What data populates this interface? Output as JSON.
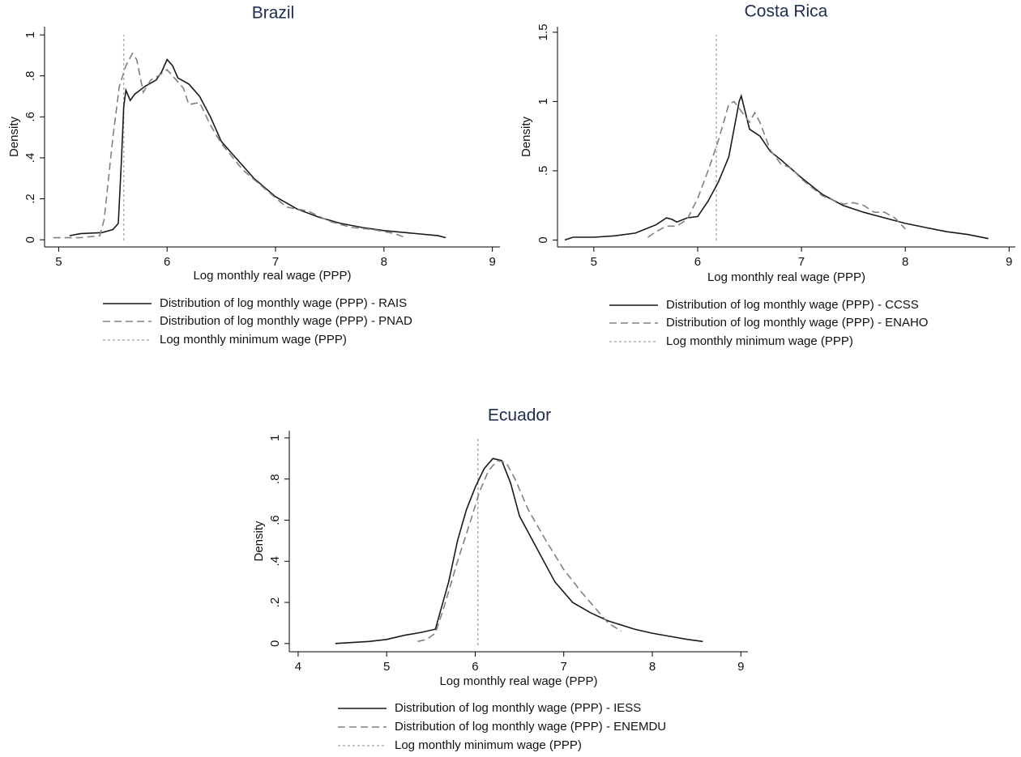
{
  "chart_data": [
    {
      "type": "line",
      "title": "Brazil",
      "x_label": "Log monthly real wage (PPP)",
      "y_label": "Density",
      "xlim": [
        4.87,
        9.07
      ],
      "xticks": [
        5,
        6,
        7,
        8,
        9
      ],
      "ylim": [
        -0.035,
        1.04
      ],
      "yticks": [
        0,
        {
          "value": 0.2,
          "label": ".2"
        },
        {
          "value": 0.4,
          "label": ".4"
        },
        {
          "value": 0.6,
          "label": ".6"
        },
        {
          "value": 0.8,
          "label": ".8"
        },
        1
      ],
      "series": [
        {
          "name": "Distribution of log monthly wage (PPP) - RAIS",
          "color": "#1a1a1a",
          "dash": "solid",
          "x": [
            5.1,
            5.2,
            5.4,
            5.5,
            5.55,
            5.58,
            5.6,
            5.62,
            5.66,
            5.7,
            5.8,
            5.9,
            5.95,
            6.0,
            6.05,
            6.1,
            6.2,
            6.3,
            6.4,
            6.5,
            6.6,
            6.8,
            7.0,
            7.2,
            7.4,
            7.6,
            7.8,
            8.0,
            8.2,
            8.4,
            8.5,
            8.57
          ],
          "values": [
            0.02,
            0.03,
            0.035,
            0.05,
            0.08,
            0.4,
            0.65,
            0.73,
            0.68,
            0.71,
            0.75,
            0.78,
            0.82,
            0.88,
            0.85,
            0.79,
            0.76,
            0.7,
            0.6,
            0.48,
            0.42,
            0.3,
            0.21,
            0.15,
            0.11,
            0.08,
            0.06,
            0.045,
            0.035,
            0.025,
            0.02,
            0.01
          ]
        },
        {
          "name": "Distribution of log monthly wage (PPP) - PNAD",
          "color": "#808080",
          "dash": "dashed",
          "x": [
            4.95,
            5.2,
            5.38,
            5.42,
            5.5,
            5.56,
            5.62,
            5.68,
            5.72,
            5.78,
            5.85,
            5.92,
            6.0,
            6.05,
            6.15,
            6.2,
            6.3,
            6.4,
            6.5,
            6.7,
            6.9,
            7.1,
            7.3,
            7.5,
            7.7,
            7.9,
            8.1,
            8.2
          ],
          "values": [
            0.01,
            0.01,
            0.02,
            0.1,
            0.5,
            0.75,
            0.85,
            0.91,
            0.88,
            0.72,
            0.78,
            0.8,
            0.83,
            0.8,
            0.74,
            0.66,
            0.67,
            0.56,
            0.47,
            0.34,
            0.25,
            0.16,
            0.14,
            0.09,
            0.06,
            0.05,
            0.03,
            0.01
          ]
        }
      ],
      "min_wage": {
        "name": "Log monthly minimum wage (PPP)",
        "x": 5.6,
        "color": "#b0b0b0"
      }
    },
    {
      "type": "line",
      "title": "Costa Rica",
      "x_label": "Log monthly real wage (PPP)",
      "y_label": "Density",
      "xlim": [
        4.65,
        9.06
      ],
      "xticks": [
        5,
        6,
        7,
        8,
        9
      ],
      "ylim": [
        -0.05,
        1.54
      ],
      "yticks": [
        0,
        {
          "value": 0.5,
          "label": ".5"
        },
        1,
        1.5
      ],
      "series": [
        {
          "name": "Distribution of log monthly wage (PPP) - CCSS",
          "color": "#1a1a1a",
          "dash": "solid",
          "x": [
            4.72,
            4.8,
            5.0,
            5.2,
            5.4,
            5.5,
            5.6,
            5.7,
            5.75,
            5.8,
            5.9,
            6.0,
            6.1,
            6.2,
            6.3,
            6.35,
            6.4,
            6.42,
            6.45,
            6.5,
            6.6,
            6.7,
            6.8,
            7.0,
            7.2,
            7.4,
            7.6,
            7.8,
            8.0,
            8.2,
            8.4,
            8.6,
            8.8
          ],
          "values": [
            0.0,
            0.02,
            0.02,
            0.03,
            0.05,
            0.08,
            0.11,
            0.16,
            0.15,
            0.13,
            0.16,
            0.17,
            0.28,
            0.42,
            0.6,
            0.8,
            1.0,
            1.04,
            0.95,
            0.8,
            0.75,
            0.64,
            0.58,
            0.45,
            0.33,
            0.25,
            0.2,
            0.16,
            0.12,
            0.09,
            0.06,
            0.04,
            0.01
          ]
        },
        {
          "name": "Distribution of log monthly wage (PPP) - ENAHO",
          "color": "#808080",
          "dash": "dashed",
          "x": [
            5.52,
            5.6,
            5.7,
            5.8,
            5.9,
            6.0,
            6.1,
            6.2,
            6.3,
            6.35,
            6.4,
            6.5,
            6.55,
            6.6,
            6.7,
            6.8,
            6.9,
            7.0,
            7.2,
            7.4,
            7.5,
            7.6,
            7.7,
            7.8,
            7.9,
            8.0
          ],
          "values": [
            0.02,
            0.06,
            0.1,
            0.1,
            0.15,
            0.3,
            0.5,
            0.72,
            0.98,
            1.0,
            0.95,
            0.85,
            0.92,
            0.85,
            0.65,
            0.55,
            0.52,
            0.44,
            0.32,
            0.26,
            0.27,
            0.25,
            0.2,
            0.2,
            0.16,
            0.08
          ]
        }
      ],
      "min_wage": {
        "name": "Log monthly minimum wage (PPP)",
        "x": 6.18,
        "color": "#b0b0b0"
      }
    },
    {
      "type": "line",
      "title": "Ecuador",
      "x_label": "Log monthly real wage (PPP)",
      "y_label": "Density",
      "xlim": [
        3.9,
        9.08
      ],
      "xticks": [
        4,
        5,
        6,
        7,
        8,
        9
      ],
      "ylim": [
        -0.04,
        1.035
      ],
      "yticks": [
        0,
        {
          "value": 0.2,
          "label": ".2"
        },
        {
          "value": 0.4,
          "label": ".4"
        },
        {
          "value": 0.6,
          "label": ".6"
        },
        {
          "value": 0.8,
          "label": ".8"
        },
        1
      ],
      "series": [
        {
          "name": "Distribution of log monthly wage (PPP) - IESS",
          "color": "#1a1a1a",
          "dash": "solid",
          "x": [
            4.42,
            4.8,
            5.0,
            5.2,
            5.4,
            5.55,
            5.7,
            5.8,
            5.9,
            6.0,
            6.1,
            6.2,
            6.3,
            6.4,
            6.5,
            6.7,
            6.9,
            7.1,
            7.3,
            7.5,
            7.8,
            8.0,
            8.2,
            8.4,
            8.57
          ],
          "values": [
            0.0,
            0.01,
            0.02,
            0.04,
            0.055,
            0.07,
            0.3,
            0.5,
            0.65,
            0.76,
            0.85,
            0.9,
            0.89,
            0.78,
            0.62,
            0.46,
            0.3,
            0.2,
            0.15,
            0.11,
            0.07,
            0.05,
            0.035,
            0.02,
            0.01
          ]
        },
        {
          "name": "Distribution of log monthly wage (PPP) - ENEMDU",
          "color": "#808080",
          "dash": "dashed",
          "x": [
            5.35,
            5.45,
            5.55,
            5.65,
            5.8,
            5.95,
            6.05,
            6.15,
            6.25,
            6.35,
            6.45,
            6.6,
            6.8,
            7.0,
            7.2,
            7.4,
            7.5,
            7.65
          ],
          "values": [
            0.01,
            0.02,
            0.05,
            0.18,
            0.4,
            0.6,
            0.74,
            0.84,
            0.89,
            0.88,
            0.8,
            0.65,
            0.5,
            0.36,
            0.25,
            0.15,
            0.1,
            0.06
          ]
        }
      ],
      "min_wage": {
        "name": "Log monthly minimum wage (PPP)",
        "x": 6.03,
        "color": "#b0b0b0"
      }
    }
  ]
}
